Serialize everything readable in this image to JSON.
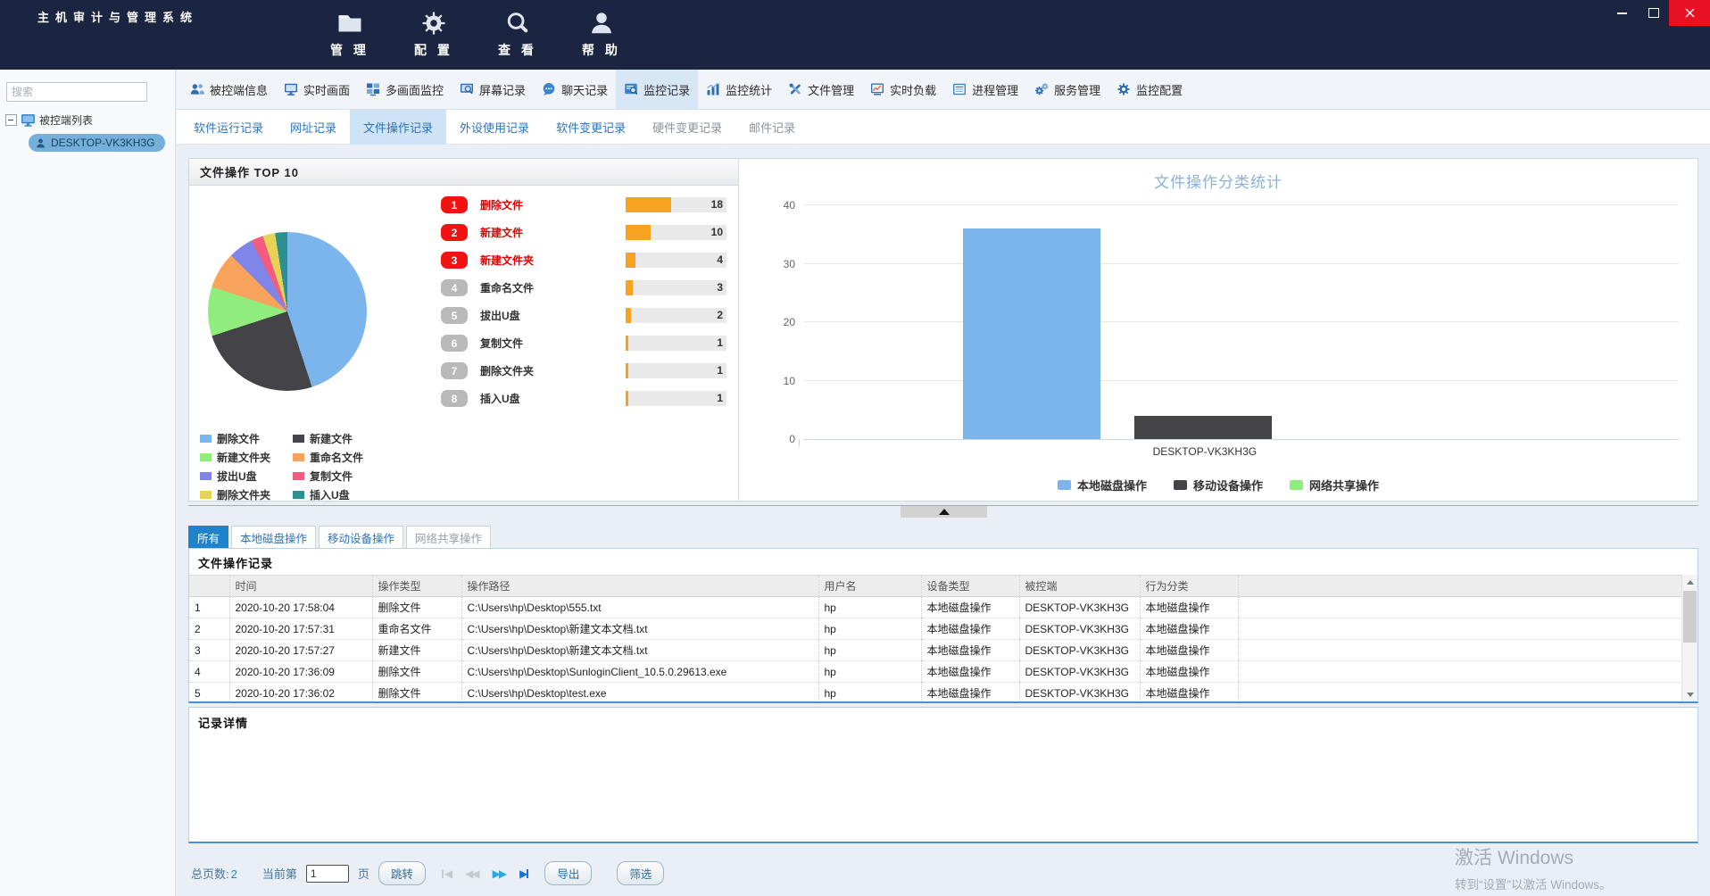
{
  "window": {
    "title": "主机审计与管理系统"
  },
  "menu": [
    {
      "label": "管 理",
      "icon": "folder"
    },
    {
      "label": "配 置",
      "icon": "gear"
    },
    {
      "label": "查 看",
      "icon": "search"
    },
    {
      "label": "帮 助",
      "icon": "person"
    }
  ],
  "sidebar": {
    "search_placeholder": "搜索",
    "root": "被控端列表",
    "host": "DESKTOP-VK3KH3G"
  },
  "toolbar": [
    {
      "label": "被控端信息",
      "icon": "people",
      "selected": false
    },
    {
      "label": "实时画面",
      "icon": "monitor",
      "selected": false
    },
    {
      "label": "多画面监控",
      "icon": "multiscreen",
      "selected": false
    },
    {
      "label": "屏幕记录",
      "icon": "screenrec",
      "selected": false
    },
    {
      "label": "聊天记录",
      "icon": "chat",
      "selected": false
    },
    {
      "label": "监控记录",
      "icon": "docsearch",
      "selected": true
    },
    {
      "label": "监控统计",
      "icon": "stats",
      "selected": false
    },
    {
      "label": "文件管理",
      "icon": "tools",
      "selected": false
    },
    {
      "label": "实时负载",
      "icon": "loadchart",
      "selected": false
    },
    {
      "label": "进程管理",
      "icon": "processlist",
      "selected": false
    },
    {
      "label": "服务管理",
      "icon": "servicegear",
      "selected": false
    },
    {
      "label": "监控配置",
      "icon": "configgear",
      "selected": false
    }
  ],
  "subtabs": [
    {
      "label": "软件运行记录",
      "state": "normal"
    },
    {
      "label": "网址记录",
      "state": "normal"
    },
    {
      "label": "文件操作记录",
      "state": "selected"
    },
    {
      "label": "外设使用记录",
      "state": "normal"
    },
    {
      "label": "软件变更记录",
      "state": "normal"
    },
    {
      "label": "硬件变更记录",
      "state": "disabled"
    },
    {
      "label": "邮件记录",
      "state": "disabled"
    }
  ],
  "chart_data": [
    {
      "type": "pie",
      "title": "文件操作 TOP 10",
      "slices": [
        {
          "label": "删除文件",
          "value": 18,
          "color": "#7cb5ec",
          "rank_highlight": true
        },
        {
          "label": "新建文件",
          "value": 10,
          "color": "#434348",
          "rank_highlight": true
        },
        {
          "label": "新建文件夹",
          "value": 4,
          "color": "#90ed7d",
          "rank_highlight": true
        },
        {
          "label": "重命名文件",
          "value": 3,
          "color": "#f7a35c",
          "rank_highlight": false
        },
        {
          "label": "拔出U盘",
          "value": 2,
          "color": "#8085e9",
          "rank_highlight": false
        },
        {
          "label": "复制文件",
          "value": 1,
          "color": "#f15c80",
          "rank_highlight": false
        },
        {
          "label": "删除文件夹",
          "value": 1,
          "color": "#e4d354",
          "rank_highlight": false
        },
        {
          "label": "插入U盘",
          "value": 1,
          "color": "#2b908f",
          "rank_highlight": false
        }
      ],
      "ranking_bar_color": "#f7a321",
      "ranking_max": 40,
      "legend_position": "bottom-left"
    },
    {
      "type": "bar",
      "title": "文件操作分类统计",
      "title_color": "#8cb0d6",
      "categories": [
        "DESKTOP-VK3KH3G"
      ],
      "series": [
        {
          "name": "本地磁盘操作",
          "values": [
            36
          ],
          "color": "#7cb5ec"
        },
        {
          "name": "移动设备操作",
          "values": [
            4
          ],
          "color": "#434348"
        },
        {
          "name": "网络共享操作",
          "values": [
            0
          ],
          "color": "#90ed7d"
        }
      ],
      "ylim": [
        0,
        40
      ],
      "yticks": [
        0,
        10,
        20,
        30,
        40
      ],
      "grid": true,
      "legend_position": "bottom-center"
    }
  ],
  "filter_tabs": [
    {
      "label": "所有",
      "state": "selected"
    },
    {
      "label": "本地磁盘操作",
      "state": "normal"
    },
    {
      "label": "移动设备操作",
      "state": "normal"
    },
    {
      "label": "网络共享操作",
      "state": "disabled"
    }
  ],
  "table": {
    "title": "文件操作记录",
    "columns": [
      "",
      "时间",
      "操作类型",
      "操作路径",
      "用户名",
      "设备类型",
      "被控端",
      "行为分类",
      ""
    ],
    "rows": [
      [
        "1",
        "2020-10-20 17:58:04",
        "删除文件",
        "C:\\Users\\hp\\Desktop\\555.txt",
        "hp",
        "本地磁盘操作",
        "DESKTOP-VK3KH3G",
        "本地磁盘操作",
        ""
      ],
      [
        "2",
        "2020-10-20 17:57:31",
        "重命名文件",
        "C:\\Users\\hp\\Desktop\\新建文本文档.txt",
        "hp",
        "本地磁盘操作",
        "DESKTOP-VK3KH3G",
        "本地磁盘操作",
        ""
      ],
      [
        "3",
        "2020-10-20 17:57:27",
        "新建文件",
        "C:\\Users\\hp\\Desktop\\新建文本文档.txt",
        "hp",
        "本地磁盘操作",
        "DESKTOP-VK3KH3G",
        "本地磁盘操作",
        ""
      ],
      [
        "4",
        "2020-10-20 17:36:09",
        "删除文件",
        "C:\\Users\\hp\\Desktop\\SunloginClient_10.5.0.29613.exe",
        "hp",
        "本地磁盘操作",
        "DESKTOP-VK3KH3G",
        "本地磁盘操作",
        ""
      ],
      [
        "5",
        "2020-10-20 17:36:02",
        "删除文件",
        "C:\\Users\\hp\\Desktop\\test.exe",
        "hp",
        "本地磁盘操作",
        "DESKTOP-VK3KH3G",
        "本地磁盘操作",
        ""
      ]
    ]
  },
  "details": {
    "title": "记录详情"
  },
  "pagination": {
    "total_label": "总页数:",
    "total_value": "2",
    "current_prefix": "当前第",
    "current_value": "1",
    "current_suffix": "页",
    "jump": "跳转",
    "export": "导出",
    "filter": "筛选"
  },
  "watermark": {
    "line1": "激活 Windows",
    "line2": "转到“设置”以激活 Windows。"
  }
}
